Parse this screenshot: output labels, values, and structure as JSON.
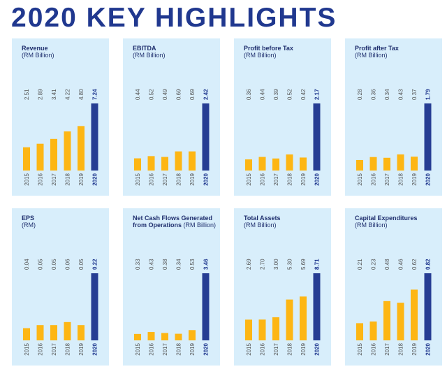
{
  "page": {
    "title": "2020 KEY HIGHLIGHTS"
  },
  "colors": {
    "title": "#20388f",
    "bar_regular": "#fdb614",
    "bar_highlight": "#263d93",
    "panel_bg": "#d8eefb"
  },
  "chart_data": [
    {
      "type": "bar",
      "title": "Revenue",
      "title_suffix": "",
      "subtitle": "(RM Billion)",
      "categories": [
        "2015",
        "2016",
        "2017",
        "2018",
        "2019",
        "2020"
      ],
      "values": [
        2.51,
        2.89,
        3.41,
        4.22,
        4.8,
        7.24
      ],
      "labels": [
        "2.51",
        "2.89",
        "3.41",
        "4.22",
        "4.80",
        "7.24"
      ],
      "highlight_index": 5
    },
    {
      "type": "bar",
      "title": "EBITDA",
      "title_suffix": "",
      "subtitle": "(RM Billion)",
      "categories": [
        "2015",
        "2016",
        "2017",
        "2018",
        "2019",
        "2020"
      ],
      "values": [
        0.44,
        0.52,
        0.49,
        0.69,
        0.69,
        2.42
      ],
      "labels": [
        "0.44",
        "0.52",
        "0.49",
        "0.69",
        "0.69",
        "2.42"
      ],
      "highlight_index": 5
    },
    {
      "type": "bar",
      "title": "Profit before Tax",
      "title_suffix": "",
      "subtitle": "(RM Billion)",
      "categories": [
        "2015",
        "2016",
        "2017",
        "2018",
        "2019",
        "2020"
      ],
      "values": [
        0.36,
        0.44,
        0.39,
        0.52,
        0.42,
        2.17
      ],
      "labels": [
        "0.36",
        "0.44",
        "0.39",
        "0.52",
        "0.42",
        "2.17"
      ],
      "highlight_index": 5
    },
    {
      "type": "bar",
      "title": "Profit after Tax",
      "title_suffix": "",
      "subtitle": "(RM Billion)",
      "categories": [
        "2015",
        "2016",
        "2017",
        "2018",
        "2019",
        "2020"
      ],
      "values": [
        0.28,
        0.36,
        0.34,
        0.43,
        0.37,
        1.79
      ],
      "labels": [
        "0.28",
        "0.36",
        "0.34",
        "0.43",
        "0.37",
        "1.79"
      ],
      "highlight_index": 5
    },
    {
      "type": "bar",
      "title": "EPS",
      "title_suffix": "",
      "subtitle": "(RM)",
      "categories": [
        "2015",
        "2016",
        "2017",
        "2018",
        "2019",
        "2020"
      ],
      "values": [
        0.04,
        0.05,
        0.05,
        0.06,
        0.05,
        0.22
      ],
      "labels": [
        "0.04",
        "0.05",
        "0.05",
        "0.06",
        "0.05",
        "0.22"
      ],
      "highlight_index": 5
    },
    {
      "type": "bar",
      "title": "Net Cash Flows Generated from Operations",
      "title_suffix": "(RM Billion)",
      "subtitle": "",
      "categories": [
        "2015",
        "2016",
        "2017",
        "2018",
        "2019",
        "2020"
      ],
      "values": [
        0.33,
        0.43,
        0.38,
        0.34,
        0.53,
        3.46
      ],
      "labels": [
        "0.33",
        "0.43",
        "0.38",
        "0.34",
        "0.53",
        "3.46"
      ],
      "highlight_index": 5
    },
    {
      "type": "bar",
      "title": "Total Assets",
      "title_suffix": "",
      "subtitle": "(RM Billion)",
      "categories": [
        "2015",
        "2016",
        "2017",
        "2018",
        "2019",
        "2020"
      ],
      "values": [
        2.69,
        2.7,
        3.0,
        5.3,
        5.69,
        8.71
      ],
      "labels": [
        "2.69",
        "2.70",
        "3.00",
        "5.30",
        "5.69",
        "8.71"
      ],
      "highlight_index": 5
    },
    {
      "type": "bar",
      "title": "Capital Expenditures",
      "title_suffix": "",
      "subtitle": "(RM Billion)",
      "categories": [
        "2015",
        "2016",
        "2017",
        "2018",
        "2019",
        "2020"
      ],
      "values": [
        0.21,
        0.23,
        0.48,
        0.46,
        0.62,
        0.82
      ],
      "labels": [
        "0.21",
        "0.23",
        "0.48",
        "0.46",
        "0.62",
        "0.82"
      ],
      "highlight_index": 5
    }
  ]
}
